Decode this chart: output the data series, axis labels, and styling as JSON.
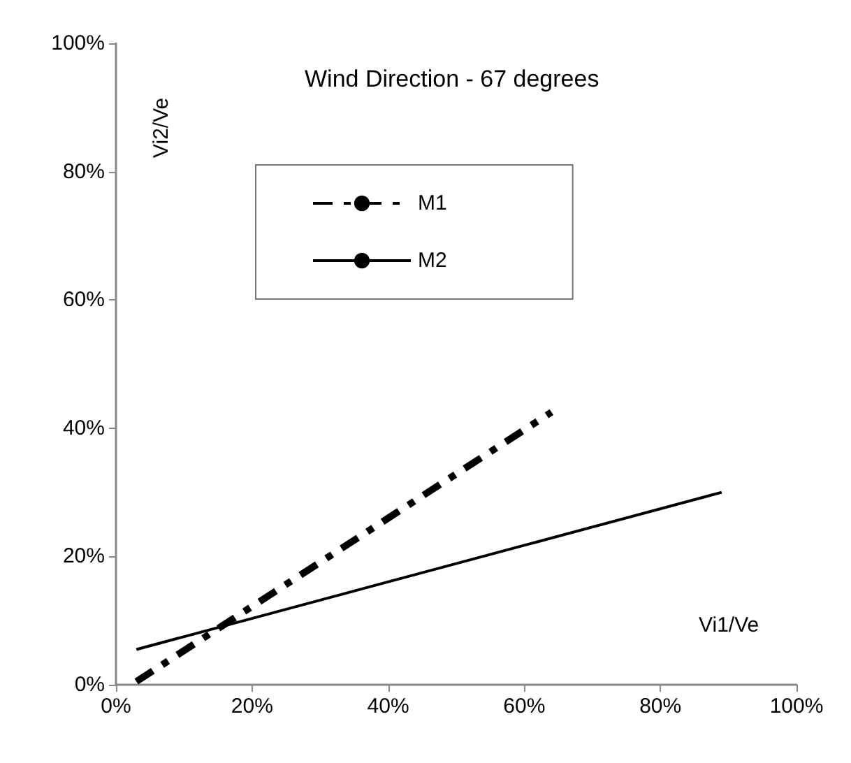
{
  "chart_data": {
    "type": "line",
    "title": "Wind Direction - 67 degrees",
    "xlabel": "Vi1/Ve",
    "ylabel": "Vi2/Ve",
    "series": [
      {
        "name": "M1",
        "color": "#000000",
        "line_style": "dashed",
        "x": [
          3,
          64
        ],
        "values": [
          0.5,
          42.5
        ]
      },
      {
        "name": "M2",
        "color": "#000000",
        "line_style": "solid",
        "x": [
          3,
          89
        ],
        "values": [
          5.5,
          30
        ]
      }
    ],
    "xlim": [
      0,
      100
    ],
    "xticks": [
      {
        "value": 0,
        "label": "0%"
      },
      {
        "value": 20,
        "label": "20%"
      },
      {
        "value": 40,
        "label": "40%"
      },
      {
        "value": 60,
        "label": "60%"
      },
      {
        "value": 80,
        "label": "80%"
      },
      {
        "value": 100,
        "label": "100%"
      }
    ],
    "ylim": [
      0,
      100
    ],
    "yticks": [
      {
        "value": 0,
        "label": "0%"
      },
      {
        "value": 20,
        "label": "20%"
      },
      {
        "value": 40,
        "label": "40%"
      },
      {
        "value": 60,
        "label": "60%"
      },
      {
        "value": 80,
        "label": "80%"
      },
      {
        "value": 100,
        "label": "100%"
      }
    ],
    "grid": false,
    "legend": "top left",
    "marker": "none"
  }
}
